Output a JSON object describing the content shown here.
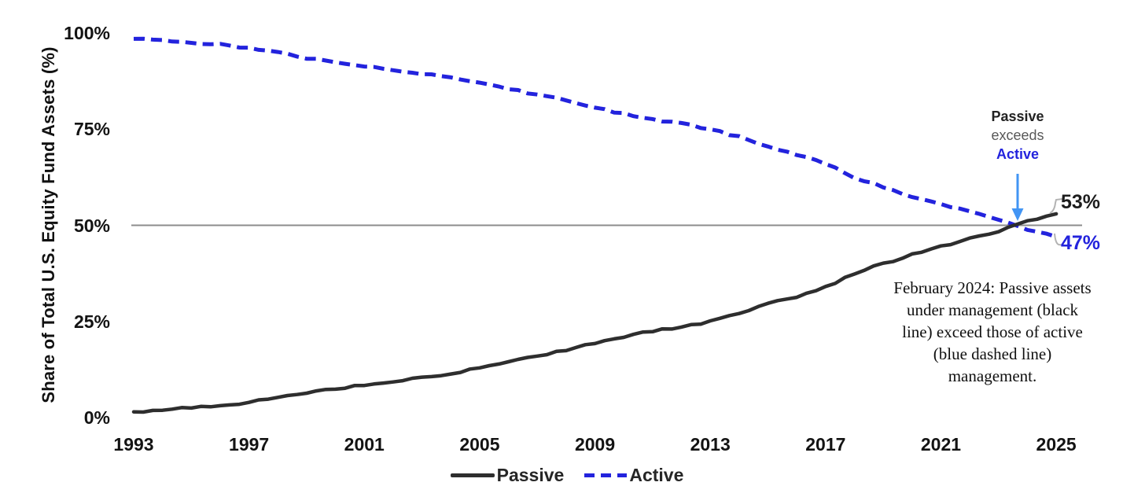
{
  "chart": {
    "y_axis_title": "Share of Total U.S. Equity Fund Assets (%)",
    "y_ticks": [
      {
        "label": "100%",
        "value": 100
      },
      {
        "label": "75%",
        "value": 75
      },
      {
        "label": "50%",
        "value": 50
      },
      {
        "label": "25%",
        "value": 25
      },
      {
        "label": "0%",
        "value": 0
      }
    ],
    "x_ticks": [
      {
        "label": "1993",
        "value": 1993
      },
      {
        "label": "1997",
        "value": 1997
      },
      {
        "label": "2001",
        "value": 2001
      },
      {
        "label": "2005",
        "value": 2005
      },
      {
        "label": "2009",
        "value": 2009
      },
      {
        "label": "2013",
        "value": 2013
      },
      {
        "label": "2017",
        "value": 2017
      },
      {
        "label": "2021",
        "value": 2021
      },
      {
        "label": "2025",
        "value": 2025
      }
    ],
    "callout": {
      "top": "Passive",
      "middle": "exceeds",
      "bottom": "Active"
    },
    "end_labels": {
      "passive": "53%",
      "active": "47%"
    },
    "note_lines": [
      "February 2024: Passive assets",
      "under management (black",
      "line) exceed those of active",
      "(blue dashed line)",
      "management."
    ],
    "legend": [
      {
        "name": "Passive",
        "style": "solid"
      },
      {
        "name": "Active",
        "style": "dashed"
      }
    ],
    "colors": {
      "passive_line": "#2e2e2e",
      "active_line": "#2323dd",
      "arrow_blue": "#4295f4",
      "gridline": "#8c8c8c",
      "leader": "#b3b3b3",
      "callout_secondary": "#595959"
    }
  },
  "chart_data": {
    "type": "line",
    "title": "",
    "xlabel": "",
    "ylabel": "Share of Total U.S. Equity Fund Assets (%)",
    "ylim": [
      0,
      100
    ],
    "xlim": [
      1993,
      2025
    ],
    "grid": "single horizontal reference line at 50%",
    "gridlines_y": [
      50
    ],
    "legend_position": "bottom-center",
    "x": [
      1993,
      1994,
      1995,
      1996,
      1997,
      1998,
      1999,
      2000,
      2001,
      2002,
      2003,
      2004,
      2005,
      2006,
      2007,
      2008,
      2009,
      2010,
      2011,
      2012,
      2013,
      2014,
      2015,
      2016,
      2017,
      2018,
      2019,
      2020,
      2021,
      2022,
      2023,
      2024,
      2025
    ],
    "series": [
      {
        "name": "Passive",
        "line_style": "solid",
        "color": "#2e2e2e",
        "values": [
          1.5,
          2,
          2.5,
          3,
          4,
          5,
          6.5,
          7.5,
          8.5,
          9.5,
          10.5,
          11.5,
          13,
          14.5,
          16,
          17.5,
          19.5,
          21,
          22.5,
          23.5,
          25,
          27,
          29.5,
          31.5,
          34,
          37.5,
          40,
          42.5,
          44.5,
          46.5,
          48.5,
          51,
          53
        ]
      },
      {
        "name": "Active",
        "line_style": "dashed",
        "color": "#2323dd",
        "values": [
          98.5,
          98,
          97.5,
          97,
          96,
          95,
          93.5,
          92.5,
          91.5,
          90.5,
          89.5,
          88.5,
          87,
          85.5,
          84,
          82.5,
          80.5,
          79,
          77.5,
          76.5,
          75,
          73,
          70.5,
          68.5,
          66,
          62.5,
          60,
          57.5,
          55.5,
          53.5,
          51.5,
          49,
          47
        ]
      }
    ],
    "annotations": [
      {
        "type": "callout_with_arrow",
        "text": "Passive exceeds Active",
        "x": 2023.8,
        "y": 50
      },
      {
        "type": "end_value_label",
        "series": "Passive",
        "text": "53%"
      },
      {
        "type": "end_value_label",
        "series": "Active",
        "text": "47%"
      },
      {
        "type": "note",
        "text": "February 2024: Passive assets under management (black line) exceed those of active (blue dashed line) management."
      }
    ]
  }
}
